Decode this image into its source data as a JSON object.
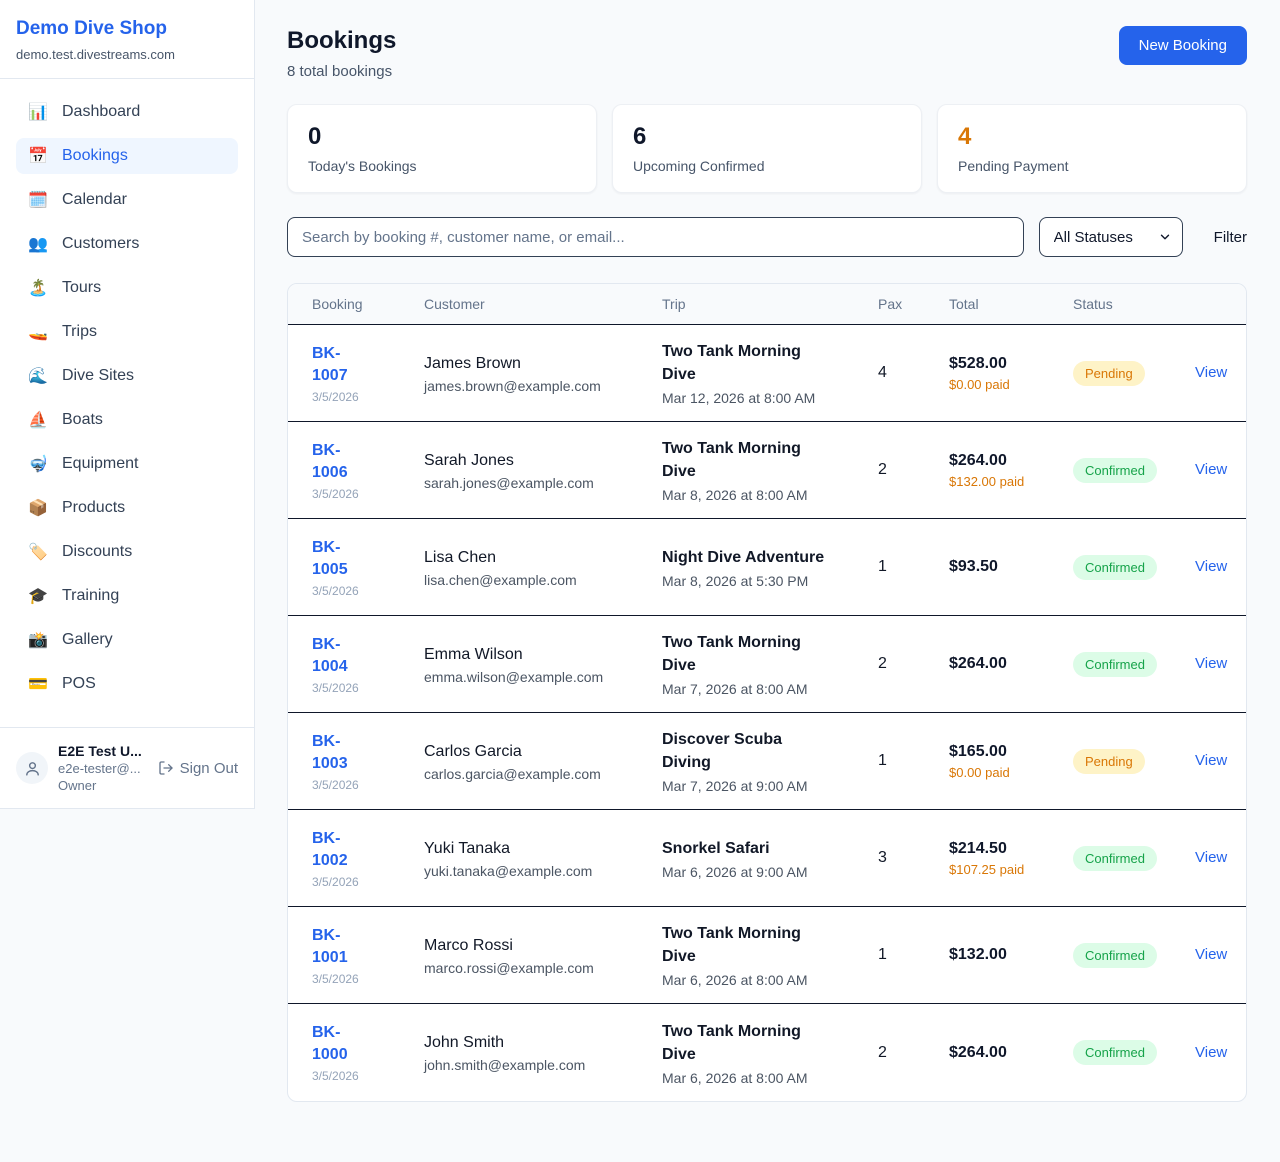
{
  "brand": {
    "name": "Demo Dive Shop",
    "domain": "demo.test.divestreams.com"
  },
  "sidebar": {
    "items": [
      {
        "label": "Dashboard",
        "icon": "📊",
        "icon_name": "bar-chart-icon",
        "active": false
      },
      {
        "label": "Bookings",
        "icon": "📅",
        "icon_name": "calendar-icon",
        "active": true
      },
      {
        "label": "Calendar",
        "icon": "🗓️",
        "icon_name": "spiral-calendar-icon",
        "active": false
      },
      {
        "label": "Customers",
        "icon": "👥",
        "icon_name": "people-icon",
        "active": false
      },
      {
        "label": "Tours",
        "icon": "🏝️",
        "icon_name": "island-icon",
        "active": false
      },
      {
        "label": "Trips",
        "icon": "🚤",
        "icon_name": "speedboat-icon",
        "active": false
      },
      {
        "label": "Dive Sites",
        "icon": "🌊",
        "icon_name": "wave-icon",
        "active": false
      },
      {
        "label": "Boats",
        "icon": "⛵",
        "icon_name": "sailboat-icon",
        "active": false
      },
      {
        "label": "Equipment",
        "icon": "🤿",
        "icon_name": "diving-mask-icon",
        "active": false
      },
      {
        "label": "Products",
        "icon": "📦",
        "icon_name": "package-icon",
        "active": false
      },
      {
        "label": "Discounts",
        "icon": "🏷️",
        "icon_name": "tag-icon",
        "active": false
      },
      {
        "label": "Training",
        "icon": "🎓",
        "icon_name": "graduation-cap-icon",
        "active": false
      },
      {
        "label": "Gallery",
        "icon": "📸",
        "icon_name": "camera-icon",
        "active": false
      },
      {
        "label": "POS",
        "icon": "💳",
        "icon_name": "credit-card-icon",
        "active": false
      }
    ],
    "user": {
      "name": "E2E Test U...",
      "email": "e2e-tester@...",
      "role": "Owner",
      "sign_out": "Sign Out"
    }
  },
  "header": {
    "title": "Bookings",
    "subtitle": "8 total bookings",
    "new_booking_label": "New Booking"
  },
  "stats": [
    {
      "value": "0",
      "label": "Today's Bookings",
      "color": "#0f172a"
    },
    {
      "value": "6",
      "label": "Upcoming Confirmed",
      "color": "#0f172a"
    },
    {
      "value": "4",
      "label": "Pending Payment",
      "color": "#d97706"
    }
  ],
  "controls": {
    "search_placeholder": "Search by booking #, customer name, or email...",
    "status_filter": "All Statuses",
    "filter_label": "Filter"
  },
  "table": {
    "columns": [
      "Booking",
      "Customer",
      "Trip",
      "Pax",
      "Total",
      "Status"
    ],
    "view_label": "View",
    "rows": [
      {
        "id": "BK-1007",
        "date": "3/5/2026",
        "customer": "James Brown",
        "email": "james.brown@example.com",
        "trip": "Two Tank Morning Dive",
        "trip_time": "Mar 12, 2026 at 8:00 AM",
        "pax": "4",
        "total": "$528.00",
        "paid": "$0.00 paid",
        "status": "Pending"
      },
      {
        "id": "BK-1006",
        "date": "3/5/2026",
        "customer": "Sarah Jones",
        "email": "sarah.jones@example.com",
        "trip": "Two Tank Morning Dive",
        "trip_time": "Mar 8, 2026 at 8:00 AM",
        "pax": "2",
        "total": "$264.00",
        "paid": "$132.00 paid",
        "status": "Confirmed"
      },
      {
        "id": "BK-1005",
        "date": "3/5/2026",
        "customer": "Lisa Chen",
        "email": "lisa.chen@example.com",
        "trip": "Night Dive Adventure",
        "trip_time": "Mar 8, 2026 at 5:30 PM",
        "pax": "1",
        "total": "$93.50",
        "paid": null,
        "status": "Confirmed"
      },
      {
        "id": "BK-1004",
        "date": "3/5/2026",
        "customer": "Emma Wilson",
        "email": "emma.wilson@example.com",
        "trip": "Two Tank Morning Dive",
        "trip_time": "Mar 7, 2026 at 8:00 AM",
        "pax": "2",
        "total": "$264.00",
        "paid": null,
        "status": "Confirmed"
      },
      {
        "id": "BK-1003",
        "date": "3/5/2026",
        "customer": "Carlos Garcia",
        "email": "carlos.garcia@example.com",
        "trip": "Discover Scuba Diving",
        "trip_time": "Mar 7, 2026 at 9:00 AM",
        "pax": "1",
        "total": "$165.00",
        "paid": "$0.00 paid",
        "status": "Pending"
      },
      {
        "id": "BK-1002",
        "date": "3/5/2026",
        "customer": "Yuki Tanaka",
        "email": "yuki.tanaka@example.com",
        "trip": "Snorkel Safari",
        "trip_time": "Mar 6, 2026 at 9:00 AM",
        "pax": "3",
        "total": "$214.50",
        "paid": "$107.25 paid",
        "status": "Confirmed"
      },
      {
        "id": "BK-1001",
        "date": "3/5/2026",
        "customer": "Marco Rossi",
        "email": "marco.rossi@example.com",
        "trip": "Two Tank Morning Dive",
        "trip_time": "Mar 6, 2026 at 8:00 AM",
        "pax": "1",
        "total": "$132.00",
        "paid": null,
        "status": "Confirmed"
      },
      {
        "id": "BK-1000",
        "date": "3/5/2026",
        "customer": "John Smith",
        "email": "john.smith@example.com",
        "trip": "Two Tank Morning Dive",
        "trip_time": "Mar 6, 2026 at 8:00 AM",
        "pax": "2",
        "total": "$264.00",
        "paid": null,
        "status": "Confirmed"
      }
    ]
  },
  "colors": {
    "accent": "#2563eb",
    "page_background": "#f8fafc",
    "pending_text": "#d97706",
    "pending_background": "#fef3c7",
    "confirmed_text": "#16a34a",
    "confirmed_background": "#dcfce7",
    "paid_amount": "#d97706"
  }
}
